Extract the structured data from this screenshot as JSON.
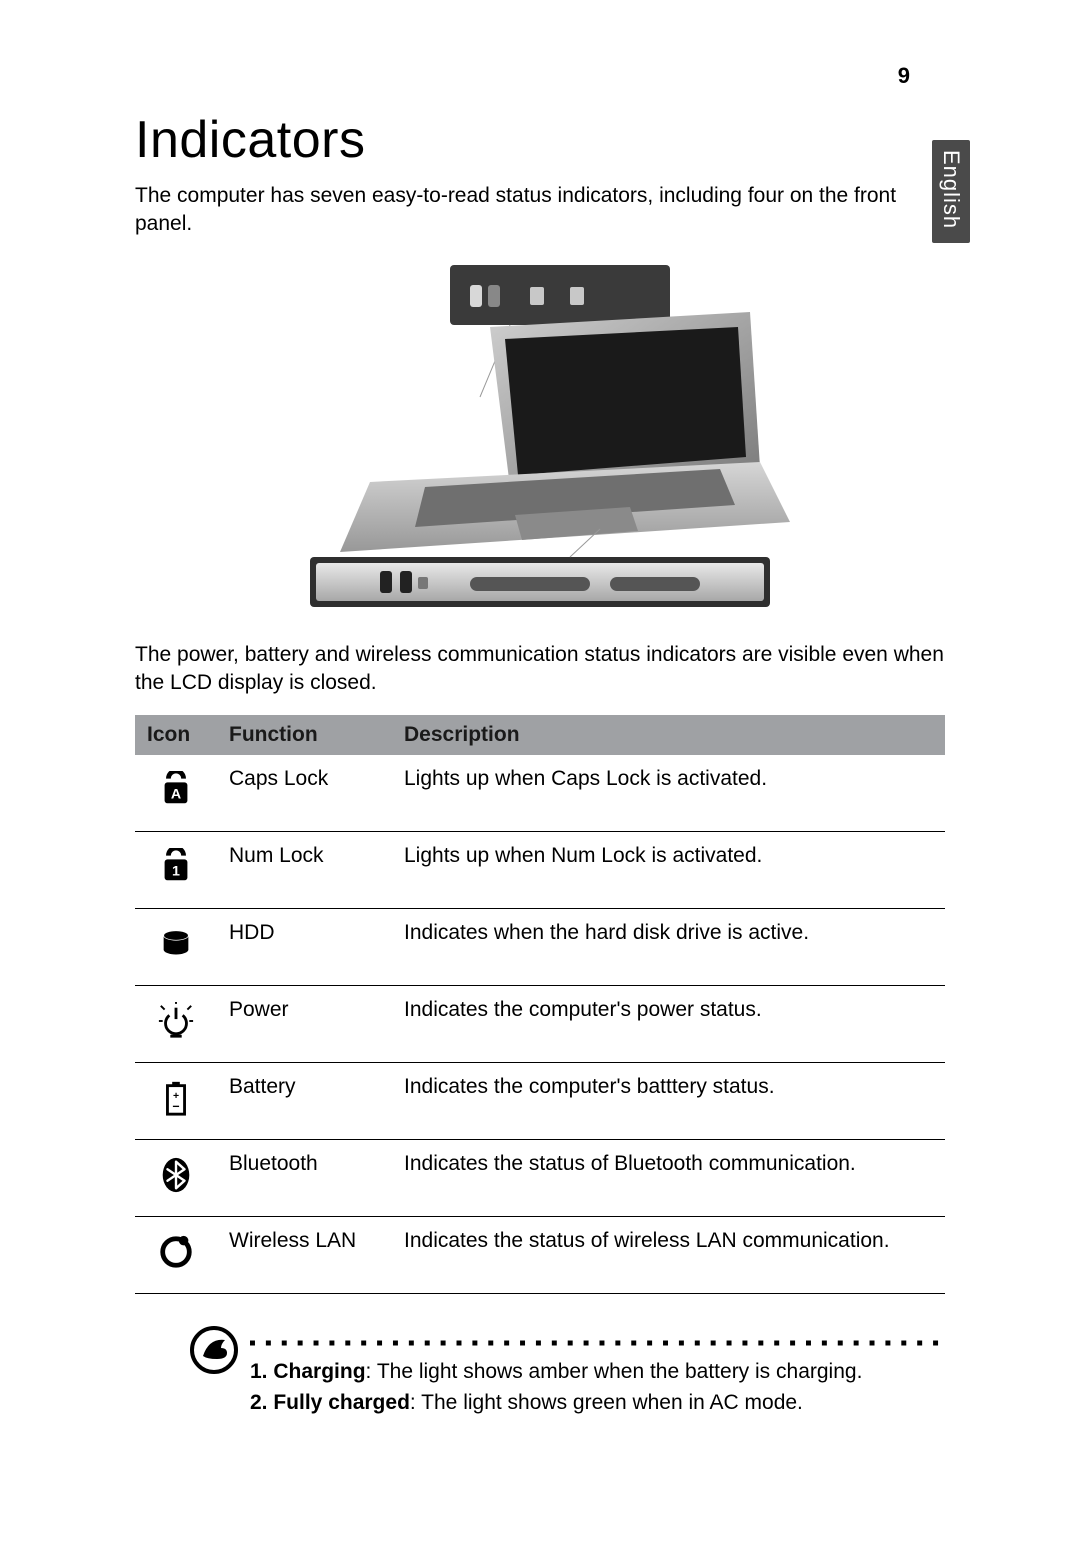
{
  "page": {
    "number": "9",
    "language_tab": "English",
    "title": "Indicators",
    "intro": "The computer has seven easy-to-read status indicators, including four on the front panel.",
    "after_figure": "The power, battery and wireless communication status indicators are visible even when the LCD display is closed."
  },
  "table": {
    "headers": {
      "icon": "Icon",
      "function": "Function",
      "description": "Description"
    },
    "rows": [
      {
        "icon": "capslock",
        "function": "Caps Lock",
        "description": "Lights up when Caps Lock is activated."
      },
      {
        "icon": "numlock",
        "function": "Num Lock",
        "description": "Lights up when Num Lock is activated."
      },
      {
        "icon": "hdd",
        "function": "HDD",
        "description": "Indicates when the hard disk drive is active."
      },
      {
        "icon": "power",
        "function": "Power",
        "description": "Indicates the computer's power status."
      },
      {
        "icon": "battery",
        "function": "Battery",
        "description": "Indicates the computer's batttery status."
      },
      {
        "icon": "bluetooth",
        "function": "Bluetooth",
        "description": "Indicates the status of Bluetooth communication."
      },
      {
        "icon": "wlan",
        "function": "Wireless LAN",
        "description": "Indicates the status of wireless LAN communication."
      }
    ]
  },
  "notes": [
    {
      "num": "1.",
      "term": "Charging",
      "text": ": The light shows amber when the battery is charging."
    },
    {
      "num": "2.",
      "term": "Fully charged",
      "text": ": The light shows green when in AC mode."
    }
  ],
  "colors": {
    "header_bg": "#9fa1a4",
    "text": "#000000",
    "tab_bg": "#4a4a4a",
    "tab_fg": "#ffffff"
  },
  "typography": {
    "title_fontsize_pt": 39,
    "body_fontsize_pt": 16,
    "table_fontsize_pt": 16
  }
}
